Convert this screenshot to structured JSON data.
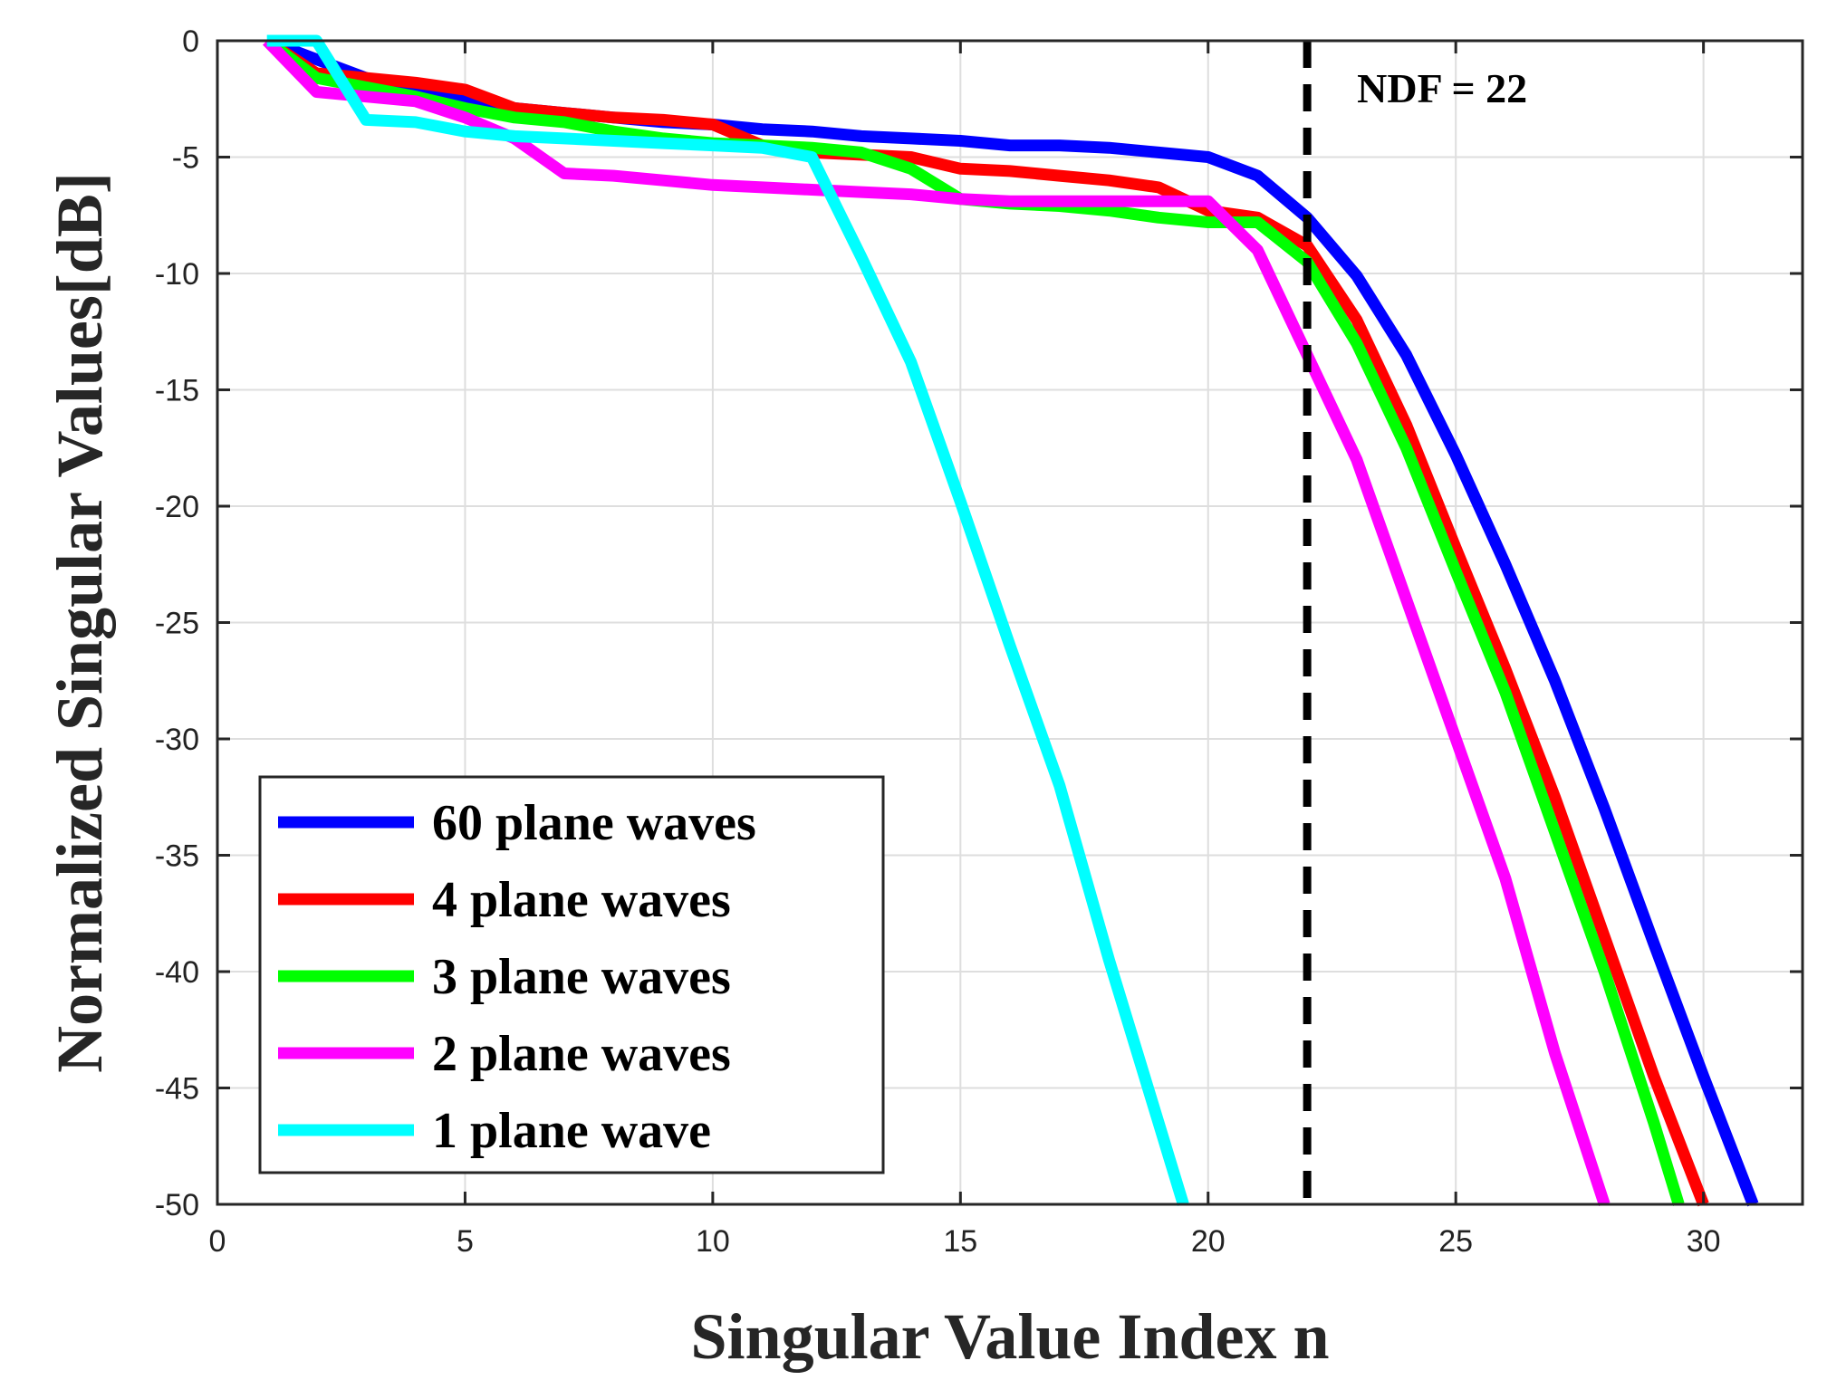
{
  "chart_data": {
    "type": "line",
    "title": "",
    "xlabel": "Singular Value Index n",
    "ylabel": "Normalized Singular Values[dB]",
    "xlim": [
      0,
      32
    ],
    "ylim": [
      -50,
      0
    ],
    "grid": true,
    "xticks": [
      0,
      5,
      10,
      15,
      20,
      25,
      30
    ],
    "xtick_labels": [
      "0",
      "5",
      "10",
      "15",
      "20",
      "25",
      "30"
    ],
    "yticks": [
      0,
      -5,
      -10,
      -15,
      -20,
      -25,
      -30,
      -35,
      -40,
      -45,
      -50
    ],
    "ytick_labels": [
      "0",
      "-5",
      "-10",
      "-15",
      "-20",
      "-25",
      "-30",
      "-35",
      "-40",
      "-45",
      "-50"
    ],
    "legend_position": "bottom-left",
    "annotation": {
      "label": "NDF = 22",
      "x": 22,
      "style": "dashed vertical line",
      "color": "#000000"
    },
    "series": [
      {
        "name": "60 plane waves",
        "color": "#0000ff",
        "x": [
          1,
          2,
          3,
          4,
          5,
          6,
          7,
          8,
          9,
          10,
          11,
          12,
          13,
          14,
          15,
          16,
          17,
          18,
          19,
          20,
          21,
          22,
          23,
          24,
          25,
          26,
          27,
          28,
          29,
          30,
          31
        ],
        "y": [
          0,
          -0.8,
          -1.6,
          -2.2,
          -2.6,
          -2.9,
          -3.1,
          -3.3,
          -3.5,
          -3.6,
          -3.8,
          -3.9,
          -4.1,
          -4.2,
          -4.3,
          -4.5,
          -4.5,
          -4.6,
          -4.8,
          -5.0,
          -5.8,
          -7.6,
          -10.1,
          -13.5,
          -17.8,
          -22.5,
          -27.5,
          -33.0,
          -38.8,
          -44.5,
          -50.0
        ]
      },
      {
        "name": "4 plane waves",
        "color": "#ff0000",
        "x": [
          1,
          2,
          3,
          4,
          5,
          6,
          7,
          8,
          9,
          10,
          11,
          12,
          13,
          14,
          15,
          16,
          17,
          18,
          19,
          20,
          21,
          22,
          23,
          24,
          25,
          26,
          27,
          28,
          29,
          30
        ],
        "y": [
          0,
          -1.4,
          -1.6,
          -1.8,
          -2.1,
          -2.9,
          -3.1,
          -3.3,
          -3.4,
          -3.6,
          -4.5,
          -4.8,
          -4.9,
          -5.0,
          -5.5,
          -5.6,
          -5.8,
          -6.0,
          -6.3,
          -7.3,
          -7.6,
          -8.8,
          -12.0,
          -16.5,
          -21.8,
          -27.0,
          -32.5,
          -38.5,
          -44.5,
          -50.0
        ]
      },
      {
        "name": "3 plane waves",
        "color": "#00ff00",
        "x": [
          1,
          2,
          3,
          4,
          5,
          6,
          7,
          8,
          9,
          10,
          11,
          12,
          13,
          14,
          15,
          16,
          17,
          18,
          19,
          20,
          21,
          22,
          23,
          24,
          25,
          26,
          27,
          28,
          29,
          29.5
        ],
        "y": [
          0,
          -1.6,
          -2.0,
          -2.4,
          -2.9,
          -3.3,
          -3.5,
          -3.9,
          -4.2,
          -4.4,
          -4.5,
          -4.6,
          -4.8,
          -5.5,
          -6.8,
          -7.0,
          -7.1,
          -7.3,
          -7.6,
          -7.8,
          -7.8,
          -9.5,
          -13.0,
          -17.5,
          -22.8,
          -28.0,
          -34.0,
          -40.0,
          -46.5,
          -50.0
        ]
      },
      {
        "name": "2 plane waves",
        "color": "#ff00ff",
        "x": [
          1,
          2,
          3,
          4,
          5,
          6,
          7,
          8,
          9,
          10,
          11,
          12,
          13,
          14,
          15,
          16,
          17,
          18,
          19,
          20,
          21,
          22,
          23,
          24,
          25,
          26,
          27,
          28
        ],
        "y": [
          0,
          -2.2,
          -2.4,
          -2.6,
          -3.3,
          -4.2,
          -5.7,
          -5.8,
          -6.0,
          -6.2,
          -6.3,
          -6.4,
          -6.5,
          -6.6,
          -6.8,
          -6.9,
          -6.9,
          -6.9,
          -6.9,
          -6.9,
          -9.0,
          -13.5,
          -18.0,
          -24.0,
          -30.0,
          -36.0,
          -43.5,
          -50.0
        ]
      },
      {
        "name": "1 plane wave",
        "color": "#00ffff",
        "x": [
          1,
          2,
          3,
          4,
          5,
          6,
          7,
          8,
          9,
          10,
          11,
          12,
          13,
          14,
          15,
          16,
          17,
          18,
          19,
          19.5
        ],
        "y": [
          0,
          0,
          -3.4,
          -3.5,
          -3.9,
          -4.1,
          -4.2,
          -4.3,
          -4.4,
          -4.5,
          -4.6,
          -5.0,
          -9.3,
          -13.8,
          -19.8,
          -26.0,
          -32.0,
          -39.5,
          -46.5,
          -50.0
        ]
      }
    ]
  }
}
